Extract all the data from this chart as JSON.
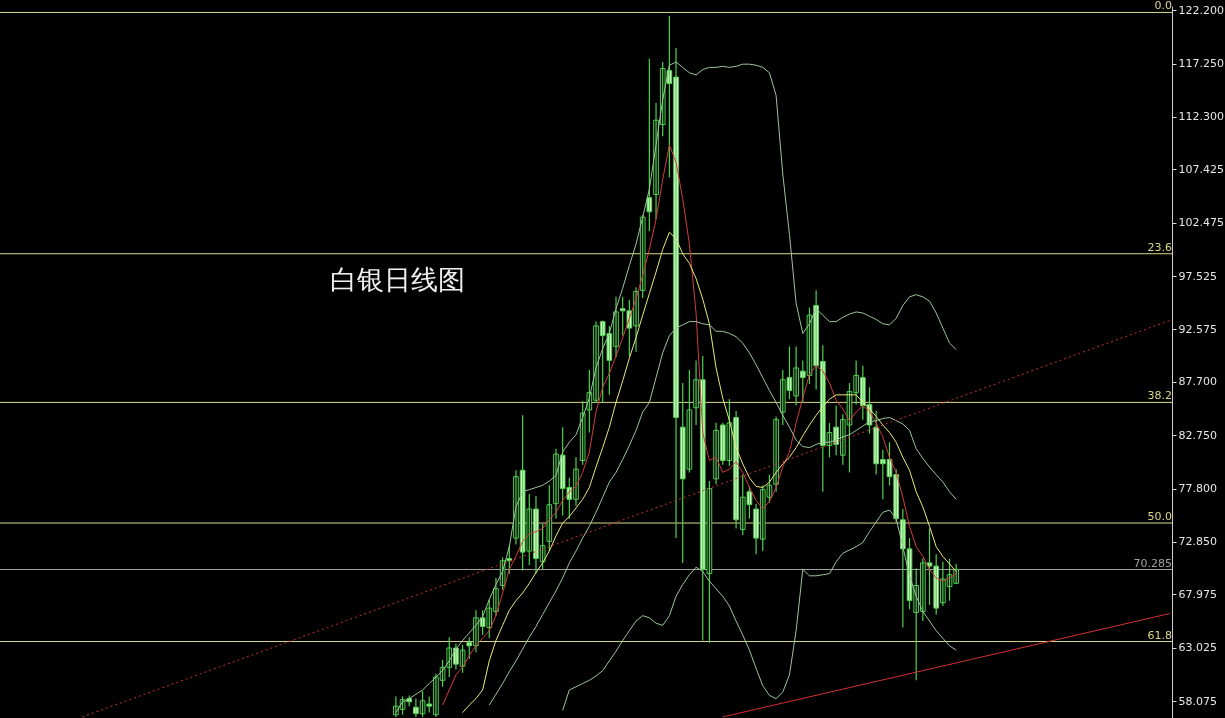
{
  "chart_data": {
    "type": "candlestick",
    "title": "白银日线图",
    "color": "#4fd04f",
    "categories": [
      null,
      null,
      null,
      null,
      null,
      null,
      null,
      null,
      null,
      null,
      null,
      null,
      null,
      null,
      null,
      null,
      null,
      null,
      null,
      null,
      null,
      null,
      null,
      null,
      null,
      null,
      null,
      null,
      null,
      null,
      null,
      null,
      null,
      null,
      null,
      null,
      null,
      null,
      null,
      null,
      null,
      null,
      null,
      null,
      null,
      null,
      null,
      null,
      null,
      null,
      null,
      null,
      null,
      null,
      null,
      null,
      null,
      null,
      null,
      null,
      null,
      null,
      null,
      null,
      null,
      null,
      null,
      null,
      null,
      null,
      null,
      null,
      null,
      null,
      null,
      null,
      null,
      null,
      null,
      null,
      null,
      null,
      null,
      null,
      null,
      null,
      null,
      null,
      null,
      null,
      null,
      null,
      null,
      null,
      null,
      null,
      null,
      null,
      null,
      null,
      null,
      null,
      null,
      null,
      null,
      null,
      null,
      null,
      null,
      null,
      null,
      null,
      null,
      null,
      null,
      null,
      null,
      null,
      null,
      null,
      null,
      null,
      null,
      null,
      null,
      null,
      null,
      null,
      null,
      null,
      null,
      null,
      null,
      null,
      null,
      null,
      null,
      null,
      null,
      null,
      null,
      null,
      null,
      null,
      null,
      null,
      null,
      null,
      null,
      null,
      null,
      null,
      null,
      null,
      null,
      null,
      null,
      null,
      null,
      null,
      null,
      null,
      null,
      null,
      null,
      null,
      null,
      null,
      null,
      null,
      null,
      null,
      null,
      null,
      null,
      null
    ],
    "ohlc": [
      null,
      null,
      null,
      null,
      null,
      null,
      null,
      null,
      null,
      null,
      null,
      null,
      null,
      null,
      null,
      null,
      null,
      null,
      null,
      null,
      null,
      null,
      null,
      null,
      null,
      null,
      null,
      null,
      null,
      null,
      null,
      null,
      null,
      null,
      null,
      null,
      null,
      null,
      null,
      null,
      null,
      null,
      null,
      null,
      null,
      null,
      null,
      null,
      null,
      null,
      null,
      null,
      null,
      null,
      null,
      null,
      null,
      null,
      null,
      [
        56.8,
        58.5,
        56.6,
        57.6
      ],
      [
        57.3,
        58.5,
        56.8,
        58.2
      ],
      [
        58.3,
        58.6,
        57.6,
        58.0
      ],
      [
        57.5,
        58.3,
        56.6,
        56.9
      ],
      [
        56.9,
        59.0,
        56.6,
        58.1
      ],
      [
        57.8,
        58.5,
        57.0,
        57.6
      ],
      [
        56.8,
        60.6,
        56.6,
        60.3
      ],
      [
        60.0,
        61.9,
        59.4,
        61.2
      ],
      [
        61.2,
        64.0,
        60.3,
        63.0
      ],
      [
        63.0,
        63.4,
        61.0,
        61.5
      ],
      [
        61.3,
        63.3,
        60.7,
        62.8
      ],
      [
        63.5,
        64.0,
        62.0,
        63.2
      ],
      [
        63.2,
        66.5,
        62.6,
        65.8
      ],
      [
        65.8,
        66.5,
        64.2,
        65.0
      ],
      [
        64.9,
        67.5,
        63.9,
        66.7
      ],
      [
        66.4,
        69.5,
        66.0,
        68.5
      ],
      [
        68.8,
        71.4,
        68.4,
        71.1
      ],
      [
        71.3,
        72.5,
        69.9,
        71.1
      ],
      [
        73.2,
        79.5,
        72.6,
        78.9
      ],
      [
        79.5,
        84.6,
        70.2,
        71.9
      ],
      [
        72.0,
        77.3,
        70.7,
        75.9
      ],
      [
        75.9,
        77.1,
        69.9,
        71.3
      ],
      [
        71.0,
        74.5,
        70.3,
        72.5
      ],
      [
        72.9,
        78.1,
        72.0,
        76.3
      ],
      [
        76.4,
        81.5,
        75.0,
        81.0
      ],
      [
        80.9,
        83.5,
        75.3,
        77.8
      ],
      [
        77.9,
        78.8,
        75.0,
        76.8
      ],
      [
        76.8,
        80.7,
        76.2,
        79.6
      ],
      [
        80.4,
        85.9,
        80.0,
        84.8
      ],
      [
        85.1,
        88.8,
        83.0,
        86.7
      ],
      [
        86.0,
        93.3,
        85.8,
        92.9
      ],
      [
        93.3,
        93.4,
        85.8,
        92.0
      ],
      [
        92.2,
        92.9,
        86.5,
        89.7
      ],
      [
        91.0,
        95.6,
        90.0,
        94.2
      ],
      [
        94.5,
        95.6,
        92.0,
        94.3
      ],
      [
        94.3,
        95.3,
        90.1,
        92.7
      ],
      [
        92.9,
        96.5,
        90.5,
        96.1
      ],
      [
        96.2,
        103.2,
        95.5,
        103.0
      ],
      [
        104.8,
        117.7,
        101.7,
        103.5
      ],
      [
        105.1,
        113.6,
        102.8,
        112.0
      ],
      [
        111.6,
        117.4,
        110.5,
        116.8
      ],
      [
        116.6,
        121.7,
        106.7,
        115.4
      ],
      [
        116.0,
        118.7,
        73.2,
        84.4
      ],
      [
        83.5,
        87.6,
        70.9,
        78.7
      ],
      [
        79.6,
        88.8,
        79.3,
        85.1
      ],
      [
        85.3,
        89.7,
        83.7,
        87.9
      ],
      [
        87.9,
        90.1,
        63.7,
        70.3
      ],
      [
        69.9,
        78.5,
        63.5,
        77.8
      ],
      [
        78.7,
        83.9,
        78.2,
        83.2
      ],
      [
        83.7,
        83.9,
        80.0,
        80.4
      ],
      [
        80.4,
        86.1,
        79.9,
        83.9
      ],
      [
        84.4,
        85.0,
        74.1,
        74.9
      ],
      [
        74.0,
        79.1,
        73.5,
        77.0
      ],
      [
        77.5,
        78.0,
        75.0,
        76.3
      ],
      [
        75.9,
        76.4,
        71.7,
        73.2
      ],
      [
        73.1,
        78.1,
        72.0,
        77.7
      ],
      [
        77.0,
        79.1,
        76.5,
        78.1
      ],
      [
        78.2,
        84.5,
        77.5,
        84.2
      ],
      [
        84.9,
        88.8,
        83.7,
        87.9
      ],
      [
        88.1,
        91.0,
        86.1,
        86.9
      ],
      [
        86.4,
        91.0,
        85.5,
        89.0
      ],
      [
        88.7,
        89.7,
        85.8,
        88.1
      ],
      [
        88.3,
        94.6,
        87.5,
        93.9
      ],
      [
        94.8,
        96.2,
        87.0,
        89.2
      ],
      [
        89.6,
        91.1,
        77.5,
        81.8
      ],
      [
        81.8,
        83.9,
        80.7,
        83.0
      ],
      [
        83.5,
        85.5,
        80.9,
        81.9
      ],
      [
        80.9,
        84.7,
        80.0,
        84.2
      ],
      [
        83.7,
        87.6,
        79.3,
        86.8
      ],
      [
        86.7,
        89.7,
        85.6,
        88.3
      ],
      [
        88.1,
        89.2,
        84.2,
        85.5
      ],
      [
        85.6,
        87.2,
        82.9,
        83.7
      ],
      [
        83.5,
        85.0,
        79.1,
        80.1
      ],
      [
        80.5,
        81.4,
        76.8,
        80.1
      ],
      [
        80.5,
        82.1,
        78.1,
        78.9
      ],
      [
        79.1,
        79.6,
        74.7,
        75.0
      ],
      [
        74.9,
        75.9,
        64.9,
        72.2
      ],
      [
        72.2,
        73.2,
        66.6,
        67.4
      ],
      [
        66.3,
        70.4,
        60.0,
        68.8
      ],
      [
        66.4,
        71.3,
        65.5,
        70.9
      ],
      [
        70.9,
        74.1,
        67.0,
        70.6
      ],
      [
        70.6,
        71.7,
        66.1,
        66.7
      ],
      [
        67.2,
        71.0,
        66.9,
        69.4
      ],
      [
        68.7,
        71.3,
        67.4,
        69.8
      ],
      [
        69.0,
        70.8,
        69.0,
        70.3
      ],
      null,
      null,
      null,
      null,
      null,
      null,
      null,
      null,
      null,
      null,
      null,
      null,
      null,
      null,
      null,
      null,
      null,
      null,
      null,
      null,
      null,
      null,
      null,
      null,
      null,
      null,
      null,
      null,
      null,
      null,
      null,
      null
    ],
    "series": [
      {
        "type": "line",
        "color": "#d23c3c",
        "values": [
          null,
          null,
          null,
          null,
          null,
          null,
          null,
          null,
          null,
          null,
          null,
          null,
          null,
          null,
          null,
          null,
          null,
          null,
          null,
          null,
          null,
          null,
          null,
          null,
          null,
          null,
          null,
          null,
          null,
          null,
          null,
          null,
          null,
          null,
          null,
          null,
          null,
          null,
          null,
          null,
          null,
          null,
          null,
          null,
          null,
          null,
          null,
          null,
          null,
          null,
          null,
          null,
          null,
          null,
          null,
          null,
          null,
          null,
          null,
          null,
          null,
          null,
          null,
          null,
          null,
          null,
          57.7,
          59.1,
          60.5,
          61.2,
          62.3,
          63.2,
          63.9,
          64.6,
          66.0,
          68.1,
          70.3,
          71.5,
          72.9,
          73.6,
          73.8,
          74.1,
          74.9,
          75.6,
          76.7,
          77.5,
          78.0,
          79.3,
          81.2,
          84.9,
          87.2,
          88.5,
          90.1,
          91.8,
          93.6,
          95.4,
          97.6,
          100.0,
          102.8,
          106.5,
          109.7,
          108.1,
          104.7,
          100.5,
          94.1,
          83.0,
          80.4,
          80.7,
          79.3,
          79.6,
          80.3,
          79.3,
          77.9,
          76.7,
          75.9,
          76.6,
          77.9,
          79.8,
          81.2,
          83.9,
          86.2,
          88.4,
          89.2,
          88.7,
          87.6,
          86.0,
          85.2,
          84.1,
          84.9,
          85.5,
          85.0,
          83.9,
          82.6,
          80.7,
          79.3,
          77.0,
          74.3,
          72.4,
          71.5,
          70.3,
          69.5,
          69.2,
          69.5,
          69.9,
          null,
          null,
          null,
          null,
          null,
          null,
          null,
          null,
          null,
          null,
          null,
          null,
          null,
          null,
          null,
          null,
          null,
          null,
          null,
          null,
          null,
          null,
          null,
          null,
          null,
          null,
          null,
          null,
          null,
          null,
          null,
          null
        ]
      },
      {
        "type": "line",
        "color": "#e8e87a",
        "values": [
          null,
          null,
          null,
          null,
          null,
          null,
          null,
          null,
          null,
          null,
          null,
          null,
          null,
          null,
          null,
          null,
          null,
          null,
          null,
          null,
          null,
          null,
          null,
          null,
          null,
          null,
          null,
          null,
          null,
          null,
          null,
          null,
          null,
          null,
          null,
          null,
          null,
          null,
          null,
          null,
          null,
          null,
          null,
          null,
          null,
          null,
          null,
          null,
          null,
          null,
          null,
          null,
          null,
          null,
          null,
          null,
          null,
          null,
          null,
          null,
          null,
          null,
          null,
          null,
          null,
          null,
          null,
          null,
          null,
          57.0,
          57.7,
          58.3,
          59.1,
          61.8,
          63.7,
          65.1,
          66.5,
          67.4,
          68.1,
          69.0,
          70.0,
          70.9,
          72.0,
          73.4,
          74.6,
          75.2,
          76.0,
          76.8,
          77.9,
          79.8,
          81.6,
          83.5,
          85.8,
          87.8,
          89.9,
          91.8,
          93.9,
          95.9,
          97.9,
          100.0,
          101.6,
          101.0,
          99.6,
          98.7,
          97.3,
          95.4,
          93.1,
          89.0,
          86.2,
          84.1,
          81.6,
          80.1,
          78.8,
          78.0,
          77.9,
          78.4,
          79.3,
          80.1,
          80.7,
          81.6,
          82.7,
          83.7,
          84.6,
          85.4,
          86.1,
          86.5,
          86.5,
          86.5,
          86.5,
          85.8,
          85.2,
          84.5,
          83.7,
          83.0,
          82.1,
          80.7,
          79.5,
          77.5,
          76.1,
          74.3,
          72.4,
          71.5,
          70.8,
          70.1,
          null,
          null,
          null,
          null,
          null,
          null,
          null,
          null,
          null,
          null,
          null,
          null,
          null,
          null,
          null,
          null,
          null,
          null,
          null,
          null,
          null,
          null,
          null,
          null,
          null,
          null,
          null,
          null,
          null,
          null,
          null,
          null
        ]
      },
      {
        "type": "line",
        "color": "#9cc49c",
        "values": [
          null,
          null,
          null,
          null,
          null,
          null,
          null,
          null,
          null,
          null,
          null,
          null,
          null,
          null,
          null,
          null,
          null,
          null,
          null,
          null,
          null,
          null,
          null,
          null,
          null,
          null,
          null,
          null,
          null,
          null,
          null,
          null,
          null,
          null,
          null,
          null,
          null,
          null,
          null,
          null,
          null,
          null,
          null,
          null,
          null,
          null,
          null,
          null,
          null,
          null,
          null,
          null,
          null,
          null,
          null,
          null,
          null,
          null,
          null,
          57.0,
          58.0,
          58.3,
          58.7,
          59.1,
          59.7,
          60.3,
          60.9,
          61.8,
          62.9,
          63.7,
          64.4,
          65.1,
          65.9,
          67.5,
          68.9,
          70.1,
          72.4,
          76.1,
          77.5,
          77.7,
          77.9,
          78.1,
          78.5,
          79.0,
          81.2,
          82.1,
          82.8,
          84.4,
          86.2,
          89.0,
          90.8,
          92.2,
          94.5,
          96.4,
          98.5,
          100.5,
          103.0,
          105.6,
          109.7,
          113.9,
          117.1,
          117.4,
          116.9,
          116.4,
          116.2,
          116.7,
          116.9,
          116.9,
          117.0,
          116.9,
          117.0,
          117.2,
          117.2,
          117.1,
          116.9,
          116.4,
          114.3,
          107.0,
          101.4,
          95.0,
          92.2,
          93.1,
          94.5,
          93.9,
          93.3,
          93.3,
          93.7,
          94.0,
          94.2,
          94.1,
          93.8,
          93.5,
          93.1,
          93.0,
          93.6,
          94.8,
          95.6,
          95.8,
          95.6,
          95.2,
          94.1,
          92.7,
          91.3,
          90.7,
          null,
          null,
          null,
          null,
          null,
          null,
          null,
          null,
          null,
          null,
          null,
          null,
          null,
          null,
          null,
          null,
          null,
          null,
          null,
          null,
          null,
          null,
          null,
          null,
          null,
          null,
          null,
          null,
          null,
          null,
          null,
          null
        ]
      },
      {
        "type": "line",
        "color": "#9cc49c",
        "values": [
          null,
          null,
          null,
          null,
          null,
          null,
          null,
          null,
          null,
          null,
          null,
          null,
          null,
          null,
          null,
          null,
          null,
          null,
          null,
          null,
          null,
          null,
          null,
          null,
          null,
          null,
          null,
          null,
          null,
          null,
          null,
          null,
          null,
          null,
          null,
          null,
          null,
          null,
          null,
          null,
          null,
          null,
          null,
          null,
          null,
          null,
          null,
          null,
          null,
          null,
          null,
          null,
          null,
          null,
          null,
          null,
          null,
          null,
          null,
          null,
          null,
          null,
          null,
          null,
          null,
          null,
          null,
          null,
          null,
          null,
          null,
          null,
          null,
          57.7,
          58.7,
          59.7,
          60.8,
          61.8,
          62.9,
          64.0,
          65.0,
          66.1,
          67.2,
          68.3,
          69.5,
          70.9,
          72.0,
          73.2,
          74.3,
          75.6,
          77.0,
          78.4,
          79.3,
          80.5,
          81.8,
          83.2,
          84.9,
          85.8,
          88.1,
          90.4,
          92.0,
          92.7,
          93.0,
          93.3,
          93.3,
          93.1,
          93.0,
          92.4,
          92.4,
          92.2,
          91.9,
          91.3,
          90.4,
          89.3,
          88.1,
          86.9,
          85.8,
          84.6,
          83.5,
          82.3,
          81.7,
          81.6,
          81.9,
          82.1,
          82.1,
          82.3,
          82.6,
          82.8,
          83.2,
          83.6,
          84.0,
          84.1,
          84.3,
          84.4,
          84.1,
          83.8,
          83.2,
          81.5,
          80.6,
          79.8,
          79.1,
          78.4,
          77.5,
          76.8,
          null,
          null,
          null,
          null,
          null,
          null,
          null,
          null,
          null,
          null,
          null,
          null,
          null,
          null,
          null,
          null,
          null,
          null,
          null,
          null,
          null,
          null,
          null,
          null,
          null,
          null,
          null,
          null,
          null,
          null,
          null,
          null
        ]
      },
      {
        "type": "line",
        "color": "#9cc49c",
        "values": [
          null,
          null,
          null,
          null,
          null,
          null,
          null,
          null,
          null,
          null,
          null,
          null,
          null,
          null,
          null,
          null,
          null,
          null,
          null,
          null,
          null,
          null,
          null,
          null,
          null,
          null,
          null,
          null,
          null,
          null,
          null,
          null,
          null,
          null,
          null,
          null,
          null,
          null,
          null,
          null,
          null,
          null,
          null,
          null,
          null,
          null,
          null,
          null,
          null,
          null,
          null,
          null,
          null,
          null,
          null,
          null,
          null,
          null,
          null,
          null,
          null,
          null,
          null,
          null,
          null,
          null,
          null,
          null,
          null,
          null,
          null,
          null,
          null,
          null,
          null,
          null,
          null,
          null,
          null,
          null,
          null,
          null,
          null,
          null,
          57.2,
          59.1,
          59.4,
          59.7,
          60.0,
          60.4,
          60.9,
          61.8,
          62.7,
          63.7,
          64.6,
          65.5,
          66.0,
          65.8,
          65.3,
          65.1,
          66.0,
          67.8,
          68.9,
          69.8,
          70.5,
          70.1,
          69.2,
          68.5,
          67.8,
          66.9,
          65.5,
          64.2,
          62.8,
          61.1,
          59.5,
          58.6,
          58.3,
          58.9,
          60.5,
          64.6,
          70.3,
          69.7,
          69.7,
          69.8,
          69.9,
          71.0,
          71.8,
          72.1,
          72.4,
          72.8,
          73.8,
          74.7,
          75.6,
          75.8,
          75.0,
          72.4,
          69.7,
          67.8,
          66.4,
          65.5,
          64.6,
          63.9,
          63.2,
          62.8,
          null,
          null,
          null,
          null,
          null,
          null,
          null,
          null,
          null,
          null,
          null,
          null,
          null,
          null,
          null,
          null,
          null,
          null,
          null,
          null,
          null,
          null,
          null,
          null,
          null,
          null,
          null,
          null,
          null,
          null,
          null,
          null
        ]
      },
      {
        "type": "line",
        "color": "#c83232",
        "line_style": "dotted",
        "values": [
          null,
          null,
          null,
          null,
          null,
          null,
          null,
          null,
          null,
          null,
          null,
          null,
          56.6,
          null,
          null,
          null,
          null,
          null,
          null,
          null,
          null,
          null,
          null,
          null,
          null,
          null,
          null,
          null,
          null,
          null,
          null,
          null,
          null,
          null,
          null,
          null,
          null,
          null,
          null,
          null,
          null,
          null,
          null,
          null,
          null,
          null,
          null,
          null,
          null,
          null,
          null,
          null,
          null,
          null,
          null,
          null,
          null,
          null,
          null,
          null,
          null,
          null,
          null,
          null,
          null,
          null,
          null,
          null,
          null,
          null,
          null,
          null,
          null,
          null,
          null,
          null,
          null,
          null,
          null,
          null,
          null,
          null,
          null,
          null,
          null,
          null,
          null,
          null,
          null,
          null,
          null,
          null,
          null,
          null,
          null,
          null,
          null,
          null,
          null,
          null,
          null,
          null,
          null,
          null,
          null,
          null,
          null,
          null,
          null,
          null,
          null,
          null,
          null,
          null,
          null,
          null,
          null,
          null,
          null,
          null,
          null,
          null,
          null,
          null,
          null,
          null,
          null,
          null,
          null,
          null,
          null,
          null,
          null,
          null,
          null,
          null,
          null,
          null,
          null,
          null,
          null,
          null,
          null,
          null,
          null,
          null,
          null,
          null,
          null,
          null,
          null,
          null,
          null,
          null,
          null,
          null,
          null,
          null,
          null,
          null,
          null,
          null,
          null,
          null,
          null,
          null,
          null,
          null,
          null,
          null,
          null,
          null,
          null,
          null,
          null,
          93.4
        ]
      },
      {
        "type": "line",
        "color": "#d23030",
        "line_style": "solid",
        "values": [
          null,
          null,
          null,
          null,
          null,
          null,
          null,
          null,
          null,
          null,
          null,
          null,
          null,
          null,
          null,
          null,
          null,
          null,
          null,
          null,
          null,
          null,
          null,
          null,
          null,
          null,
          null,
          null,
          null,
          null,
          null,
          null,
          null,
          null,
          null,
          null,
          null,
          null,
          null,
          null,
          null,
          null,
          null,
          null,
          null,
          null,
          null,
          null,
          null,
          null,
          null,
          null,
          null,
          null,
          null,
          null,
          null,
          null,
          null,
          null,
          null,
          null,
          null,
          null,
          null,
          null,
          null,
          null,
          null,
          null,
          null,
          null,
          null,
          null,
          null,
          null,
          null,
          null,
          null,
          null,
          null,
          null,
          null,
          null,
          null,
          null,
          null,
          null,
          null,
          null,
          null,
          null,
          null,
          null,
          null,
          null,
          null,
          null,
          null,
          null,
          null,
          null,
          null,
          null,
          null,
          null,
          null,
          null,
          56.6,
          null,
          null,
          null,
          null,
          null,
          null,
          null,
          null,
          null,
          null,
          null,
          null,
          null,
          null,
          null,
          null,
          null,
          null,
          null,
          null,
          null,
          null,
          null,
          null,
          null,
          null,
          null,
          null,
          null,
          null,
          null,
          null,
          null,
          null,
          null,
          null,
          null,
          null,
          null,
          null,
          null,
          null,
          null,
          null,
          null,
          null,
          null,
          null,
          null,
          null,
          null,
          null,
          null,
          null,
          null,
          null,
          null,
          null,
          null,
          null,
          null,
          null,
          null,
          null,
          null,
          null,
          66.2
        ]
      }
    ],
    "ylim": [
      56.5,
      122.6
    ],
    "yticks": [
      {
        "value": 58.075,
        "label": "58.075"
      },
      {
        "value": 63.025,
        "label": "63.025"
      },
      {
        "value": 67.975,
        "label": "67.975"
      },
      {
        "value": 72.85,
        "label": "72.850"
      },
      {
        "value": 77.8,
        "label": "77.800"
      },
      {
        "value": 82.75,
        "label": "82.750"
      },
      {
        "value": 87.7,
        "label": "87.700"
      },
      {
        "value": 92.575,
        "label": "92.575"
      },
      {
        "value": 97.525,
        "label": "97.525"
      },
      {
        "value": 102.475,
        "label": "102.475"
      },
      {
        "value": 107.425,
        "label": "107.425"
      },
      {
        "value": 112.3,
        "label": "112.300"
      },
      {
        "value": 117.25,
        "label": "117.250"
      },
      {
        "value": 122.2,
        "label": "122.200"
      }
    ],
    "ref_lines": [
      {
        "axis": "y",
        "value": 122.0,
        "color": "#d8d88c"
      },
      {
        "axis": "y",
        "value": 99.6,
        "color": "#d8d88c"
      },
      {
        "axis": "y",
        "value": 85.8,
        "color": "#d8d88c"
      },
      {
        "axis": "y",
        "value": 74.6,
        "color": "#d8d88c"
      },
      {
        "axis": "y",
        "value": 63.6,
        "color": "#d8d88c"
      },
      {
        "axis": "y",
        "value": 70.285,
        "label": "70.285",
        "color": "#a0a0a0"
      }
    ],
    "annotations": [
      {
        "text": "0.0",
        "y": 122.0
      },
      {
        "text": "23.6",
        "y": 99.6
      },
      {
        "text": "38.2",
        "y": 85.8
      },
      {
        "text": "50.0",
        "y": 74.6
      },
      {
        "text": "61.8",
        "y": 63.6
      }
    ],
    "grid": false
  }
}
